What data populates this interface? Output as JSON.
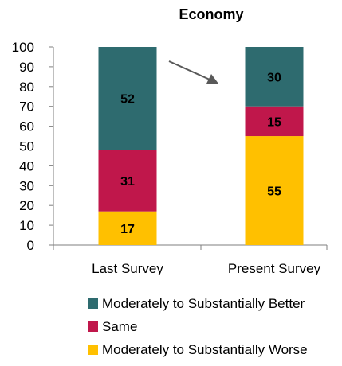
{
  "chart_data": {
    "type": "bar",
    "stacked": true,
    "title": "Economy",
    "categories": [
      "Last Survey",
      "Present Survey"
    ],
    "series": [
      {
        "name": "Moderately to Substantially Worse",
        "values": [
          17,
          55
        ],
        "color": "#ffc000"
      },
      {
        "name": "Same",
        "values": [
          31,
          15
        ],
        "color": "#c0174b"
      },
      {
        "name": "Moderately to Substantially Better",
        "values": [
          52,
          30
        ],
        "color": "#2e6b6f"
      }
    ],
    "ylim": [
      0,
      100
    ],
    "yticks": [
      0,
      10,
      20,
      30,
      40,
      50,
      60,
      70,
      80,
      90,
      100
    ],
    "grid": false,
    "legend_position": "bottom",
    "annotation": "arrow from Last Survey to Present Survey"
  },
  "legend": {
    "items": [
      {
        "label": "Moderately to Substantially Better",
        "color": "#2e6b6f"
      },
      {
        "label": "Same",
        "color": "#c0174b"
      },
      {
        "label": "Moderately to Substantially Worse",
        "color": "#ffc000"
      }
    ]
  }
}
